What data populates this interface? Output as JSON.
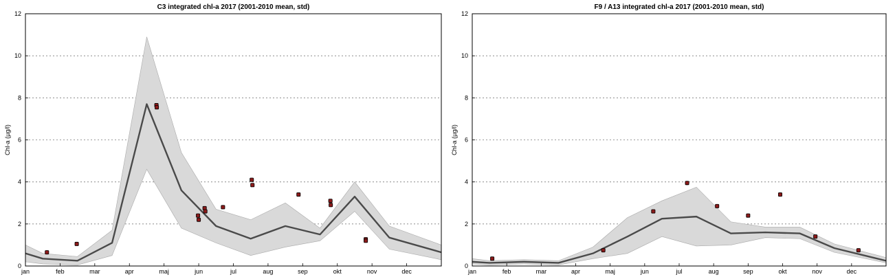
{
  "chart_data": [
    {
      "type": "line",
      "title": "C3 integrated chl-a 2017 (2001-2010 mean, std)",
      "ylabel": "Chl-a (µg/l)",
      "xlabel": "",
      "x_ticks": [
        "jan",
        "feb",
        "mar",
        "apr",
        "maj",
        "jun",
        "jul",
        "aug",
        "sep",
        "okt",
        "nov",
        "dec"
      ],
      "ylim": [
        0,
        12
      ],
      "y_ticks": [
        "0",
        "2",
        "4",
        "6",
        "8",
        "10",
        "12"
      ],
      "xlim_month": [
        1,
        13
      ],
      "grid": true,
      "mean": {
        "x": [
          1.0,
          1.5,
          2.5,
          3.5,
          4.5,
          5.5,
          6.5,
          7.5,
          8.5,
          9.5,
          10.5,
          11.5,
          13.0
        ],
        "y": [
          0.6,
          0.35,
          0.25,
          1.1,
          7.7,
          3.6,
          1.9,
          1.3,
          1.9,
          1.5,
          3.3,
          1.35,
          0.65
        ]
      },
      "std_band": {
        "x": [
          1.0,
          1.5,
          2.5,
          3.5,
          4.5,
          5.5,
          6.5,
          7.5,
          8.5,
          9.5,
          10.5,
          11.5,
          13.0
        ],
        "lower": [
          0.2,
          0.1,
          0.05,
          0.5,
          4.6,
          1.8,
          1.1,
          0.5,
          0.9,
          1.2,
          2.6,
          0.8,
          0.3
        ],
        "upper": [
          1.0,
          0.6,
          0.45,
          1.7,
          10.9,
          5.4,
          2.7,
          2.2,
          3.0,
          1.8,
          4.0,
          1.9,
          1.0
        ]
      },
      "observations": {
        "x": [
          1.62,
          2.48,
          4.78,
          4.79,
          5.98,
          6.0,
          6.17,
          6.19,
          6.7,
          7.53,
          7.55,
          8.88,
          9.8,
          9.81,
          10.82,
          10.82
        ],
        "y": [
          0.65,
          1.05,
          7.65,
          7.55,
          2.4,
          2.2,
          2.75,
          2.6,
          2.8,
          4.1,
          3.85,
          3.4,
          3.1,
          2.9,
          1.27,
          1.2
        ]
      }
    },
    {
      "type": "line",
      "title": "F9 / A13 integrated chl-a 2017 (2001-2010 mean, std)",
      "ylabel": "Chl-a (µg/l)",
      "xlabel": "",
      "x_ticks": [
        "jan",
        "feb",
        "mar",
        "apr",
        "maj",
        "jun",
        "jul",
        "aug",
        "sep",
        "okt",
        "nov",
        "dec"
      ],
      "ylim": [
        0,
        12
      ],
      "y_ticks": [
        "0",
        "2",
        "4",
        "6",
        "8",
        "10",
        "12"
      ],
      "xlim_month": [
        1,
        13
      ],
      "grid": true,
      "mean": {
        "x": [
          1.0,
          1.5,
          2.5,
          3.5,
          4.5,
          5.5,
          6.5,
          7.5,
          8.5,
          9.5,
          10.5,
          11.5,
          13.0
        ],
        "y": [
          0.2,
          0.15,
          0.2,
          0.15,
          0.6,
          1.4,
          2.25,
          2.35,
          1.55,
          1.6,
          1.55,
          0.85,
          0.25
        ]
      },
      "std_band": {
        "x": [
          1.0,
          1.5,
          2.5,
          3.5,
          4.5,
          5.5,
          6.5,
          7.5,
          8.5,
          9.5,
          10.5,
          11.5,
          13.0
        ],
        "lower": [
          0.1,
          0.05,
          0.1,
          0.05,
          0.35,
          0.6,
          1.4,
          0.95,
          1.0,
          1.35,
          1.3,
          0.65,
          0.15
        ],
        "upper": [
          0.35,
          0.25,
          0.3,
          0.25,
          0.9,
          2.3,
          3.1,
          3.75,
          2.1,
          1.85,
          1.85,
          1.05,
          0.4
        ]
      },
      "observations": {
        "x": [
          1.58,
          4.8,
          6.25,
          7.23,
          8.1,
          9.0,
          9.93,
          10.95,
          12.2
        ],
        "y": [
          0.35,
          0.75,
          2.6,
          3.95,
          2.85,
          2.4,
          3.4,
          1.4,
          0.75
        ]
      }
    }
  ]
}
